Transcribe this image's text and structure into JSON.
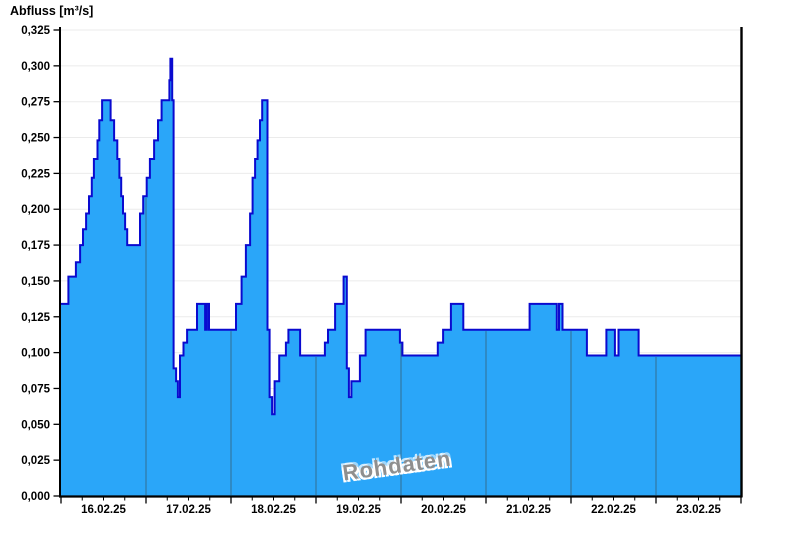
{
  "chart_data": {
    "type": "area",
    "step": true,
    "title": "Abfluss [m³/s]",
    "unit": "m³/s",
    "watermark": "Rohdaten",
    "ylim": [
      0,
      0.325
    ],
    "y_axis": {
      "tick_values": [
        0.0,
        0.025,
        0.05,
        0.075,
        0.1,
        0.125,
        0.15,
        0.175,
        0.2,
        0.225,
        0.25,
        0.275,
        0.3,
        0.325
      ],
      "tick_labels": [
        "0,000",
        "0,025",
        "0,050",
        "0,075",
        "0,100",
        "0,125",
        "0,150",
        "0,175",
        "0,200",
        "0,225",
        "0,250",
        "0,275",
        "0,300",
        "0,325"
      ]
    },
    "x_axis": {
      "labels": [
        "16.02.25",
        "17.02.25",
        "18.02.25",
        "19.02.25",
        "20.02.25",
        "21.02.25",
        "22.02.25",
        "23.02.25"
      ],
      "days": 8,
      "hours_per_day": 24,
      "total_hours": 192,
      "minor_ticks_per_day": 4
    },
    "series": [
      {
        "name": "Abfluss Rohdaten",
        "steps_hour_value": [
          [
            0,
            0.134
          ],
          [
            2.1,
            0.153
          ],
          [
            4.2,
            0.163
          ],
          [
            5.4,
            0.175
          ],
          [
            6.2,
            0.186
          ],
          [
            7.1,
            0.197
          ],
          [
            7.9,
            0.209
          ],
          [
            8.7,
            0.222
          ],
          [
            9.3,
            0.235
          ],
          [
            10.3,
            0.248
          ],
          [
            10.8,
            0.262
          ],
          [
            11.6,
            0.276
          ],
          [
            14.0,
            0.262
          ],
          [
            15.0,
            0.248
          ],
          [
            15.9,
            0.235
          ],
          [
            16.5,
            0.222
          ],
          [
            17.0,
            0.209
          ],
          [
            17.5,
            0.197
          ],
          [
            18.1,
            0.186
          ],
          [
            18.7,
            0.175
          ],
          [
            22.3,
            0.197
          ],
          [
            23.2,
            0.209
          ],
          [
            24.2,
            0.222
          ],
          [
            25.1,
            0.235
          ],
          [
            26.3,
            0.248
          ],
          [
            27.4,
            0.262
          ],
          [
            28.4,
            0.276
          ],
          [
            30.6,
            0.29
          ],
          [
            30.9,
            0.305
          ],
          [
            31.4,
            0.276
          ],
          [
            31.8,
            0.089
          ],
          [
            32.5,
            0.08
          ],
          [
            33.0,
            0.069
          ],
          [
            33.6,
            0.098
          ],
          [
            34.6,
            0.107
          ],
          [
            35.6,
            0.116
          ],
          [
            38.4,
            0.134
          ],
          [
            40.7,
            0.116
          ],
          [
            41.2,
            0.134
          ],
          [
            41.8,
            0.116
          ],
          [
            49.4,
            0.134
          ],
          [
            51.0,
            0.153
          ],
          [
            52.2,
            0.175
          ],
          [
            53.4,
            0.197
          ],
          [
            54.1,
            0.222
          ],
          [
            54.8,
            0.235
          ],
          [
            55.5,
            0.248
          ],
          [
            56.2,
            0.262
          ],
          [
            56.8,
            0.276
          ],
          [
            58.3,
            0.116
          ],
          [
            58.9,
            0.069
          ],
          [
            59.6,
            0.057
          ],
          [
            60.3,
            0.08
          ],
          [
            61.6,
            0.098
          ],
          [
            63.5,
            0.107
          ],
          [
            64.2,
            0.116
          ],
          [
            67.5,
            0.098
          ],
          [
            74.5,
            0.107
          ],
          [
            75.4,
            0.116
          ],
          [
            77.4,
            0.134
          ],
          [
            79.8,
            0.153
          ],
          [
            80.7,
            0.089
          ],
          [
            81.3,
            0.069
          ],
          [
            82.0,
            0.08
          ],
          [
            84.4,
            0.098
          ],
          [
            86.0,
            0.116
          ],
          [
            95.7,
            0.107
          ],
          [
            96.4,
            0.098
          ],
          [
            106.4,
            0.107
          ],
          [
            107.9,
            0.116
          ],
          [
            110.1,
            0.134
          ],
          [
            113.6,
            0.116
          ],
          [
            132.3,
            0.134
          ],
          [
            140.0,
            0.116
          ],
          [
            140.6,
            0.134
          ],
          [
            141.6,
            0.116
          ],
          [
            148.5,
            0.098
          ],
          [
            154.0,
            0.116
          ],
          [
            156.4,
            0.098
          ],
          [
            157.4,
            0.116
          ],
          [
            163.1,
            0.098
          ]
        ]
      }
    ],
    "colors": {
      "fill": "#2AA6F9",
      "outline": "#0A0ACF",
      "grid": "#EBEBEB",
      "day_line": "#35647F",
      "axis": "#000000",
      "label": "#000000",
      "watermark": "#8F8F8F"
    },
    "legend_position": "none",
    "grid": "horizontal-only"
  }
}
